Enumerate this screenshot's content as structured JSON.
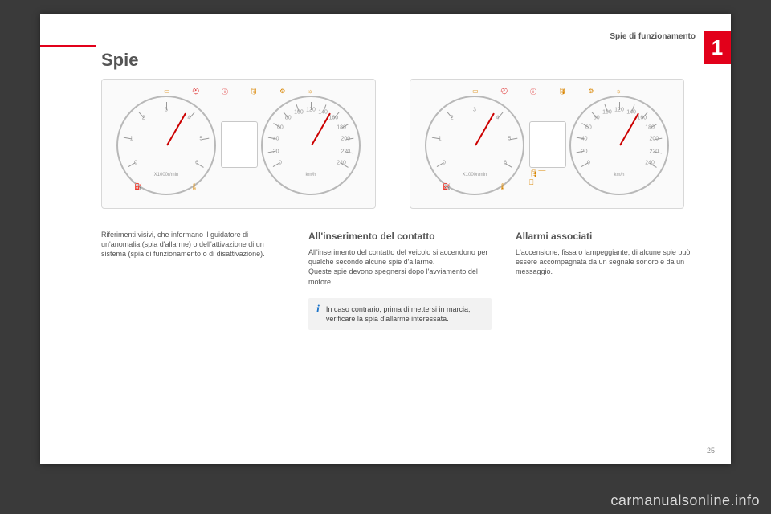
{
  "header": {
    "section_label": "Spie di funzionamento",
    "chapter_number": "1",
    "accent_color": "#e2001a"
  },
  "title": "Spie",
  "gauge_cluster": {
    "type": "diagram",
    "background_color": "#fafafa",
    "border_color": "#d8d8d8",
    "dial_border_color": "#b8b8b8",
    "needle_color": "#c00000",
    "tick_color": "#999999",
    "left_dial": {
      "unit_label": "X1000r/min",
      "numbers": [
        "0",
        "1",
        "2",
        "3",
        "4",
        "5",
        "6"
      ],
      "needle_angle_deg": 210,
      "bottom_icons": [
        "fuel-warning",
        "temp-warning"
      ],
      "bottom_icon_color": "#d98500"
    },
    "right_dial": {
      "unit_label": "km/h",
      "numbers": [
        "0",
        "20",
        "40",
        "60",
        "80",
        "100",
        "120",
        "140",
        "160",
        "180",
        "200",
        "220",
        "240"
      ],
      "needle_angle_deg": 210
    },
    "top_icons": {
      "items": [
        "battery",
        "seatbelt",
        "parking",
        "oil",
        "engine",
        "abs"
      ],
      "colors": [
        "#d98500",
        "#d90000",
        "#d90000",
        "#d98500",
        "#d98500",
        "#d98500"
      ]
    },
    "center_warn_icons": {
      "show_on_right_cluster": true,
      "items": [
        "oil-level",
        "coolant-level"
      ],
      "color": "#d98500"
    }
  },
  "columns": {
    "col1": {
      "body": "Riferimenti visivi, che informano il guidatore di un'anomalia (spia d'allarme) o dell'attivazione di un sistema (spia di funzionamento o di disattivazione)."
    },
    "col2": {
      "heading": "All'inserimento del contatto",
      "body": "All'inserimento del contatto del veicolo si accendono per qualche secondo alcune spie d'allarme.\nQueste spie devono spegnersi dopo l'avviamento del motore.",
      "info_box": "In caso contrario, prima di mettersi in marcia, verificare la spia d'allarme interessata."
    },
    "col3": {
      "heading": "Allarmi associati",
      "body": "L'accensione, fissa o lampeggiante, di alcune spie può essere accompagnata da un segnale sonoro e da un messaggio."
    }
  },
  "page_number": "25",
  "watermark": "carmanualsonline.info",
  "styling": {
    "page_bg": "#ffffff",
    "outer_bg": "#3a3a3a",
    "text_color": "#555555",
    "info_box_bg": "#f2f2f2",
    "info_i_color": "#1a73c9",
    "title_fontsize": 22,
    "heading_fontsize": 12,
    "body_fontsize": 9
  }
}
